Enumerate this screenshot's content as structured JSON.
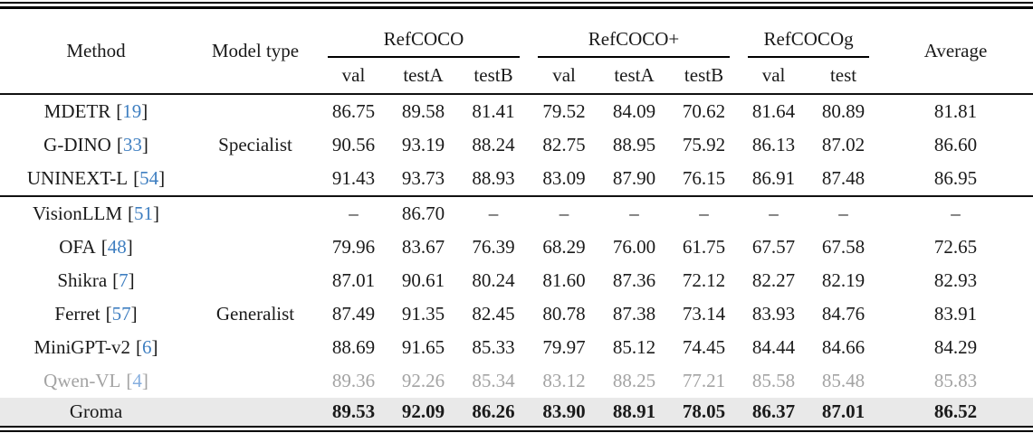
{
  "colors": {
    "text": "#1a1a1a",
    "citation_blue": "#3f7fc1",
    "muted_text": "#a3a3a3",
    "muted_citation_blue": "#85aede",
    "highlight_row_bg": "#e9e9e9",
    "rule_black": "#000000"
  },
  "citation_brackets": {
    "open": "[",
    "close": "]"
  },
  "table": {
    "headers": {
      "method": "Method",
      "model_type": "Model type",
      "groups": [
        {
          "label": "RefCOCO",
          "cols": [
            "val",
            "testA",
            "testB"
          ]
        },
        {
          "label": "RefCOCO+",
          "cols": [
            "val",
            "testA",
            "testB"
          ]
        },
        {
          "label": "RefCOCOg",
          "cols": [
            "val",
            "test"
          ]
        }
      ],
      "average": "Average"
    },
    "rows": [
      {
        "method": "MDETR",
        "cite": "19",
        "model_type": "",
        "muted": false,
        "highlight": false,
        "separator_after": false,
        "values": [
          "86.75",
          "89.58",
          "81.41",
          "79.52",
          "84.09",
          "70.62",
          "81.64",
          "80.89",
          "81.81"
        ]
      },
      {
        "method": "G-DINO",
        "cite": "33",
        "model_type": "Specialist",
        "muted": false,
        "highlight": false,
        "separator_after": false,
        "values": [
          "90.56",
          "93.19",
          "88.24",
          "82.75",
          "88.95",
          "75.92",
          "86.13",
          "87.02",
          "86.60"
        ]
      },
      {
        "method": "UNINEXT-L",
        "cite": "54",
        "model_type": "",
        "muted": false,
        "highlight": false,
        "separator_after": true,
        "values": [
          "91.43",
          "93.73",
          "88.93",
          "83.09",
          "87.90",
          "76.15",
          "86.91",
          "87.48",
          "86.95"
        ]
      },
      {
        "method": "VisionLLM",
        "cite": "51",
        "model_type": "",
        "muted": false,
        "highlight": false,
        "separator_after": false,
        "values": [
          "–",
          "86.70",
          "–",
          "–",
          "–",
          "–",
          "–",
          "–",
          "–"
        ]
      },
      {
        "method": "OFA",
        "cite": "48",
        "model_type": "",
        "muted": false,
        "highlight": false,
        "separator_after": false,
        "values": [
          "79.96",
          "83.67",
          "76.39",
          "68.29",
          "76.00",
          "61.75",
          "67.57",
          "67.58",
          "72.65"
        ]
      },
      {
        "method": "Shikra",
        "cite": "7",
        "model_type": "",
        "muted": false,
        "highlight": false,
        "separator_after": false,
        "values": [
          "87.01",
          "90.61",
          "80.24",
          "81.60",
          "87.36",
          "72.12",
          "82.27",
          "82.19",
          "82.93"
        ]
      },
      {
        "method": "Ferret",
        "cite": "57",
        "model_type": "Generalist",
        "muted": false,
        "highlight": false,
        "separator_after": false,
        "values": [
          "87.49",
          "91.35",
          "82.45",
          "80.78",
          "87.38",
          "73.14",
          "83.93",
          "84.76",
          "83.91"
        ]
      },
      {
        "method": "MiniGPT-v2",
        "cite": "6",
        "model_type": "",
        "muted": false,
        "highlight": false,
        "separator_after": false,
        "values": [
          "88.69",
          "91.65",
          "85.33",
          "79.97",
          "85.12",
          "74.45",
          "84.44",
          "84.66",
          "84.29"
        ]
      },
      {
        "method": "Qwen-VL",
        "cite": "4",
        "model_type": "",
        "muted": true,
        "highlight": false,
        "separator_after": false,
        "values": [
          "89.36",
          "92.26",
          "85.34",
          "83.12",
          "88.25",
          "77.21",
          "85.58",
          "85.48",
          "85.83"
        ]
      },
      {
        "method": "Groma",
        "cite": "",
        "model_type": "",
        "muted": false,
        "highlight": true,
        "separator_after": false,
        "values": [
          "89.53",
          "92.09",
          "86.26",
          "83.90",
          "88.91",
          "78.05",
          "86.37",
          "87.01",
          "86.52"
        ]
      }
    ]
  }
}
